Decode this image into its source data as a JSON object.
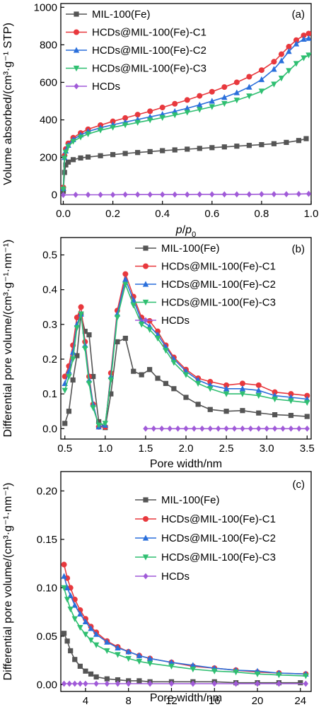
{
  "series_style": [
    {
      "name": "MIL-100(Fe)",
      "color": "#555555",
      "marker": "square"
    },
    {
      "name": "HCDs@MIL-100(Fe)-C1",
      "color": "#e8383d",
      "marker": "circle"
    },
    {
      "name": "HCDs@MIL-100(Fe)-C2",
      "color": "#2a6fdb",
      "marker": "triangle-up"
    },
    {
      "name": "HCDs@MIL-100(Fe)-C3",
      "color": "#2fbf71",
      "marker": "triangle-down"
    },
    {
      "name": "HCDs",
      "color": "#a05ad8",
      "marker": "diamond"
    }
  ],
  "chart_data": [
    {
      "id": "a",
      "type": "line",
      "panel_label": "(a)",
      "xlabel_parts": [
        "p",
        "/",
        "p",
        "0"
      ],
      "ylabel": "Volume absorbed/(cm³·g⁻¹ STP)",
      "xlim": [
        -0.01,
        1.0
      ],
      "ylim": [
        -50,
        1020
      ],
      "xticks": [
        0.0,
        0.2,
        0.4,
        0.6,
        0.8,
        1.0
      ],
      "xtick_labels": [
        "0.0",
        "0.2",
        "0.4",
        "0.6",
        "0.8",
        "1.0"
      ],
      "yticks": [
        0,
        200,
        400,
        600,
        800,
        1000
      ],
      "ytick_labels": [
        "0",
        "200",
        "400",
        "600",
        "800",
        "1000"
      ],
      "legend_position": "top-left",
      "series": [
        {
          "name": "MIL-100(Fe)",
          "x": [
            0.0,
            0.005,
            0.01,
            0.02,
            0.04,
            0.07,
            0.1,
            0.15,
            0.2,
            0.25,
            0.3,
            0.35,
            0.4,
            0.45,
            0.5,
            0.55,
            0.6,
            0.65,
            0.7,
            0.75,
            0.8,
            0.85,
            0.9,
            0.95,
            0.98
          ],
          "y": [
            20,
            120,
            160,
            175,
            188,
            197,
            202,
            209,
            215,
            221,
            226,
            231,
            236,
            240,
            244,
            248,
            252,
            256,
            260,
            264,
            268,
            273,
            280,
            290,
            300
          ]
        },
        {
          "name": "HCDs@MIL-100(Fe)-C1",
          "x": [
            0.0,
            0.005,
            0.01,
            0.02,
            0.04,
            0.07,
            0.1,
            0.15,
            0.2,
            0.25,
            0.3,
            0.35,
            0.4,
            0.45,
            0.5,
            0.55,
            0.6,
            0.65,
            0.7,
            0.75,
            0.8,
            0.85,
            0.88,
            0.91,
            0.94,
            0.97,
            0.99
          ],
          "y": [
            40,
            210,
            245,
            275,
            305,
            330,
            350,
            372,
            392,
            410,
            428,
            446,
            466,
            486,
            506,
            528,
            550,
            575,
            600,
            630,
            665,
            710,
            750,
            790,
            825,
            850,
            860
          ]
        },
        {
          "name": "HCDs@MIL-100(Fe)-C2",
          "x": [
            0.0,
            0.005,
            0.01,
            0.02,
            0.04,
            0.07,
            0.1,
            0.15,
            0.2,
            0.25,
            0.3,
            0.35,
            0.4,
            0.45,
            0.5,
            0.55,
            0.6,
            0.65,
            0.7,
            0.75,
            0.8,
            0.85,
            0.88,
            0.91,
            0.94,
            0.97,
            0.99
          ],
          "y": [
            35,
            200,
            235,
            265,
            295,
            320,
            338,
            358,
            374,
            388,
            402,
            416,
            430,
            445,
            462,
            480,
            500,
            520,
            545,
            575,
            615,
            670,
            715,
            765,
            805,
            830,
            835
          ]
        },
        {
          "name": "HCDs@MIL-100(Fe)-C3",
          "x": [
            0.0,
            0.005,
            0.01,
            0.02,
            0.04,
            0.07,
            0.1,
            0.15,
            0.2,
            0.25,
            0.3,
            0.35,
            0.4,
            0.45,
            0.5,
            0.55,
            0.6,
            0.65,
            0.7,
            0.75,
            0.8,
            0.85,
            0.88,
            0.91,
            0.94,
            0.97,
            0.99
          ],
          "y": [
            30,
            195,
            228,
            258,
            285,
            308,
            325,
            345,
            360,
            373,
            386,
            399,
            412,
            426,
            440,
            455,
            470,
            487,
            505,
            527,
            553,
            590,
            622,
            662,
            700,
            730,
            745
          ]
        },
        {
          "name": "HCDs",
          "x": [
            0.0,
            0.05,
            0.1,
            0.15,
            0.2,
            0.25,
            0.3,
            0.35,
            0.4,
            0.45,
            0.5,
            0.55,
            0.6,
            0.65,
            0.7,
            0.75,
            0.8,
            0.85,
            0.9,
            0.95,
            0.99
          ],
          "y": [
            0,
            1,
            1,
            1,
            1,
            2,
            2,
            2,
            2,
            2,
            2,
            3,
            3,
            3,
            3,
            3,
            4,
            4,
            4,
            5,
            6
          ]
        }
      ]
    },
    {
      "id": "b",
      "type": "line",
      "panel_label": "(b)",
      "xlabel": "Pore width/nm",
      "ylabel": "Differential pore volume/(cm³·g⁻¹·nm⁻¹)",
      "xlim": [
        0.45,
        3.55
      ],
      "ylim": [
        -0.03,
        0.55
      ],
      "xticks": [
        0.5,
        1.0,
        1.5,
        2.0,
        2.5,
        3.0,
        3.5
      ],
      "xtick_labels": [
        "0.5",
        "1.0",
        "1.5",
        "2.0",
        "2.5",
        "3.0",
        "3.5"
      ],
      "yticks": [
        0.0,
        0.1,
        0.2,
        0.3,
        0.4,
        0.5
      ],
      "ytick_labels": [
        "0.0",
        "0.1",
        "0.2",
        "0.3",
        "0.4",
        "0.5"
      ],
      "legend_position": "top-right",
      "series": [
        {
          "name": "MIL-100(Fe)",
          "x": [
            0.5,
            0.55,
            0.6,
            0.65,
            0.7,
            0.75,
            0.8,
            0.85,
            0.92,
            1.0,
            1.07,
            1.15,
            1.25,
            1.35,
            1.45,
            1.55,
            1.65,
            1.75,
            1.85,
            2.0,
            2.15,
            2.3,
            2.5,
            2.7,
            2.9,
            3.1,
            3.3,
            3.5
          ],
          "y": [
            0.015,
            0.05,
            0.14,
            0.21,
            0.33,
            0.28,
            0.27,
            0.15,
            0.02,
            0.003,
            0.1,
            0.25,
            0.26,
            0.165,
            0.155,
            0.17,
            0.145,
            0.13,
            0.115,
            0.09,
            0.07,
            0.055,
            0.05,
            0.052,
            0.045,
            0.04,
            0.038,
            0.035
          ]
        },
        {
          "name": "HCDs@MIL-100(Fe)-C1",
          "x": [
            0.5,
            0.55,
            0.6,
            0.65,
            0.7,
            0.75,
            0.8,
            0.85,
            0.92,
            1.0,
            1.07,
            1.15,
            1.25,
            1.35,
            1.45,
            1.55,
            1.65,
            1.75,
            1.85,
            2.0,
            2.15,
            2.3,
            2.5,
            2.7,
            2.9,
            3.1,
            3.3,
            3.5
          ],
          "y": [
            0.15,
            0.18,
            0.24,
            0.32,
            0.35,
            0.25,
            0.15,
            0.07,
            0.005,
            0.005,
            0.16,
            0.34,
            0.445,
            0.38,
            0.32,
            0.31,
            0.28,
            0.24,
            0.205,
            0.17,
            0.145,
            0.135,
            0.125,
            0.13,
            0.125,
            0.105,
            0.1,
            0.095
          ]
        },
        {
          "name": "HCDs@MIL-100(Fe)-C2",
          "x": [
            0.5,
            0.55,
            0.6,
            0.65,
            0.7,
            0.75,
            0.8,
            0.85,
            0.92,
            1.0,
            1.07,
            1.15,
            1.25,
            1.35,
            1.45,
            1.55,
            1.65,
            1.75,
            1.85,
            2.0,
            2.15,
            2.3,
            2.5,
            2.7,
            2.9,
            3.1,
            3.3,
            3.5
          ],
          "y": [
            0.13,
            0.165,
            0.22,
            0.3,
            0.33,
            0.24,
            0.14,
            0.07,
            0.005,
            0.01,
            0.15,
            0.33,
            0.43,
            0.37,
            0.31,
            0.295,
            0.27,
            0.235,
            0.2,
            0.165,
            0.14,
            0.125,
            0.115,
            0.115,
            0.11,
            0.095,
            0.09,
            0.085
          ]
        },
        {
          "name": "HCDs@MIL-100(Fe)-C3",
          "x": [
            0.5,
            0.55,
            0.6,
            0.65,
            0.7,
            0.75,
            0.8,
            0.85,
            0.92,
            1.0,
            1.07,
            1.15,
            1.25,
            1.35,
            1.45,
            1.55,
            1.65,
            1.75,
            1.85,
            2.0,
            2.15,
            2.3,
            2.5,
            2.7,
            2.9,
            3.1,
            3.3,
            3.5
          ],
          "y": [
            0.11,
            0.15,
            0.2,
            0.29,
            0.33,
            0.23,
            0.13,
            0.06,
            0.01,
            0.015,
            0.14,
            0.32,
            0.415,
            0.355,
            0.3,
            0.285,
            0.26,
            0.225,
            0.19,
            0.155,
            0.13,
            0.115,
            0.1,
            0.1,
            0.095,
            0.085,
            0.08,
            0.075
          ]
        },
        {
          "name": "HCDs",
          "x": [
            1.5,
            1.6,
            1.7,
            1.8,
            1.9,
            2.0,
            2.1,
            2.2,
            2.3,
            2.4,
            2.5,
            2.6,
            2.7,
            2.8,
            2.9,
            3.0,
            3.1,
            3.2,
            3.3,
            3.4,
            3.5
          ],
          "y": [
            0.0,
            0.0,
            0.0,
            0.0,
            0.0,
            0.0,
            0.0,
            0.0,
            0.0,
            0.0,
            0.0,
            0.0,
            0.0,
            0.0,
            0.0,
            0.0,
            0.0,
            0.0,
            0.0,
            0.0,
            0.0
          ]
        }
      ]
    },
    {
      "id": "c",
      "type": "line",
      "panel_label": "(c)",
      "xlabel": "Pore width/nm",
      "ylabel": "Differential pore volume/(cm³·g⁻¹·nm⁻¹)",
      "xlim": [
        1.7,
        25.0
      ],
      "ylim": [
        -0.007,
        0.22
      ],
      "xticks": [
        4,
        8,
        12,
        16,
        20,
        24
      ],
      "xtick_labels": [
        "4",
        "8",
        "12",
        "16",
        "20",
        "24"
      ],
      "yticks": [
        0.0,
        0.05,
        0.1,
        0.15,
        0.2
      ],
      "ytick_labels": [
        "0.00",
        "0.05",
        "0.10",
        "0.15",
        "0.20"
      ],
      "legend_position": "top-right",
      "series": [
        {
          "name": "MIL-100(Fe)",
          "x": [
            2.0,
            2.3,
            2.6,
            3.0,
            3.5,
            4.0,
            4.5,
            5.0,
            6.0,
            7.0,
            8.0,
            9.0,
            10.0,
            12.0,
            14.0,
            16.0,
            18.0,
            20.0,
            22.0,
            24.0
          ],
          "y": [
            0.053,
            0.045,
            0.035,
            0.026,
            0.019,
            0.014,
            0.011,
            0.008,
            0.006,
            0.005,
            0.004,
            0.004,
            0.003,
            0.003,
            0.003,
            0.003,
            0.002,
            0.002,
            0.002,
            0.002
          ]
        },
        {
          "name": "HCDs@MIL-100(Fe)-C1",
          "x": [
            2.0,
            2.3,
            2.6,
            3.0,
            3.5,
            4.0,
            4.5,
            5.0,
            6.0,
            7.0,
            8.0,
            9.0,
            10.0,
            12.0,
            14.0,
            16.0,
            18.0,
            20.0,
            22.0,
            24.5
          ],
          "y": [
            0.124,
            0.11,
            0.1,
            0.088,
            0.077,
            0.068,
            0.06,
            0.054,
            0.045,
            0.039,
            0.034,
            0.03,
            0.027,
            0.023,
            0.019,
            0.017,
            0.015,
            0.013,
            0.012,
            0.011
          ]
        },
        {
          "name": "HCDs@MIL-100(Fe)-C2",
          "x": [
            2.0,
            2.3,
            2.6,
            3.0,
            3.5,
            4.0,
            4.5,
            5.0,
            6.0,
            7.0,
            8.0,
            9.0,
            10.0,
            12.0,
            14.0,
            16.0,
            18.0,
            20.0,
            22.0,
            24.5
          ],
          "y": [
            0.112,
            0.1,
            0.092,
            0.082,
            0.073,
            0.065,
            0.058,
            0.052,
            0.044,
            0.038,
            0.034,
            0.03,
            0.027,
            0.023,
            0.02,
            0.017,
            0.015,
            0.014,
            0.012,
            0.011
          ]
        },
        {
          "name": "HCDs@MIL-100(Fe)-C3",
          "x": [
            2.0,
            2.3,
            2.6,
            3.0,
            3.5,
            4.0,
            4.5,
            5.0,
            6.0,
            7.0,
            8.0,
            9.0,
            10.0,
            12.0,
            14.0,
            16.0,
            18.0,
            20.0,
            22.0,
            24.5
          ],
          "y": [
            0.1,
            0.088,
            0.078,
            0.068,
            0.059,
            0.052,
            0.046,
            0.041,
            0.035,
            0.031,
            0.027,
            0.024,
            0.022,
            0.019,
            0.016,
            0.014,
            0.013,
            0.011,
            0.01,
            0.009
          ]
        },
        {
          "name": "HCDs",
          "x": [
            2.0,
            2.5,
            3.0,
            3.5,
            4.0,
            5.0,
            6.0,
            7.0,
            8.0,
            10.0,
            12.0,
            14.0,
            16.0,
            18.0,
            20.0,
            22.0,
            24.5
          ],
          "y": [
            0.001,
            0.001,
            0.001,
            0.001,
            0.001,
            0.001,
            0.001,
            0.001,
            0.001,
            0.001,
            0.001,
            0.001,
            0.001,
            0.001,
            0.001,
            0.001,
            0.001
          ]
        }
      ]
    }
  ]
}
